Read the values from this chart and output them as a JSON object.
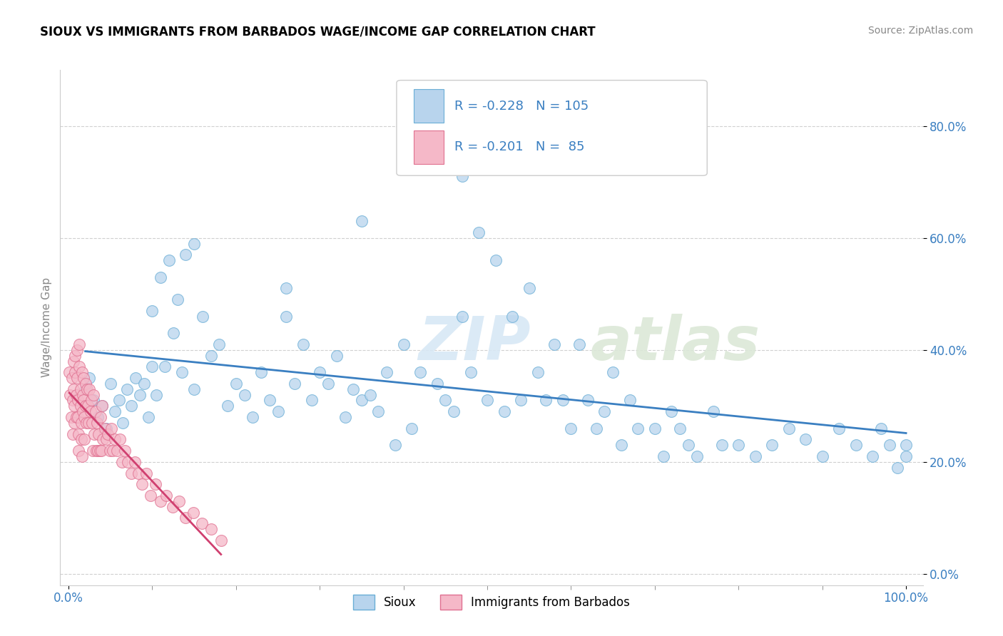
{
  "title": "SIOUX VS IMMIGRANTS FROM BARBADOS WAGE/INCOME GAP CORRELATION CHART",
  "source": "Source: ZipAtlas.com",
  "ylabel": "Wage/Income Gap",
  "legend_label1": "Sioux",
  "legend_label2": "Immigrants from Barbados",
  "R1": -0.228,
  "N1": 105,
  "R2": -0.201,
  "N2": 85,
  "watermark_zip": "ZIP",
  "watermark_atlas": "atlas",
  "color_sioux_fill": "#b8d4ed",
  "color_sioux_edge": "#6aaed6",
  "color_barbados_fill": "#f5b8c8",
  "color_barbados_edge": "#e07090",
  "color_line_sioux": "#3a7fc1",
  "color_line_barbados": "#d04070",
  "ytick_vals": [
    0.0,
    0.2,
    0.4,
    0.6,
    0.8
  ],
  "ytick_labels": [
    "0.0%",
    "20.0%",
    "40.0%",
    "60.0%",
    "80.0%"
  ],
  "sioux_x": [
    0.02,
    0.025,
    0.03,
    0.035,
    0.04,
    0.045,
    0.05,
    0.055,
    0.06,
    0.065,
    0.07,
    0.075,
    0.08,
    0.085,
    0.09,
    0.095,
    0.1,
    0.105,
    0.11,
    0.115,
    0.12,
    0.125,
    0.13,
    0.135,
    0.14,
    0.15,
    0.16,
    0.17,
    0.18,
    0.19,
    0.2,
    0.21,
    0.22,
    0.23,
    0.24,
    0.25,
    0.26,
    0.27,
    0.28,
    0.29,
    0.3,
    0.31,
    0.32,
    0.33,
    0.34,
    0.35,
    0.36,
    0.37,
    0.38,
    0.39,
    0.4,
    0.41,
    0.42,
    0.44,
    0.45,
    0.46,
    0.47,
    0.48,
    0.49,
    0.5,
    0.51,
    0.52,
    0.53,
    0.54,
    0.55,
    0.56,
    0.57,
    0.58,
    0.59,
    0.6,
    0.61,
    0.62,
    0.63,
    0.64,
    0.65,
    0.66,
    0.67,
    0.68,
    0.7,
    0.71,
    0.72,
    0.73,
    0.74,
    0.75,
    0.77,
    0.78,
    0.8,
    0.82,
    0.84,
    0.86,
    0.88,
    0.9,
    0.92,
    0.94,
    0.96,
    0.97,
    0.98,
    0.99,
    1.0,
    1.0,
    0.47,
    0.35,
    0.26,
    0.15,
    0.1
  ],
  "sioux_y": [
    0.33,
    0.35,
    0.31,
    0.28,
    0.3,
    0.26,
    0.34,
    0.29,
    0.31,
    0.27,
    0.33,
    0.3,
    0.35,
    0.32,
    0.34,
    0.28,
    0.37,
    0.32,
    0.53,
    0.37,
    0.56,
    0.43,
    0.49,
    0.36,
    0.57,
    0.33,
    0.46,
    0.39,
    0.41,
    0.3,
    0.34,
    0.32,
    0.28,
    0.36,
    0.31,
    0.29,
    0.46,
    0.34,
    0.41,
    0.31,
    0.36,
    0.34,
    0.39,
    0.28,
    0.33,
    0.31,
    0.32,
    0.29,
    0.36,
    0.23,
    0.41,
    0.26,
    0.36,
    0.34,
    0.31,
    0.29,
    0.46,
    0.36,
    0.61,
    0.31,
    0.56,
    0.29,
    0.46,
    0.31,
    0.51,
    0.36,
    0.31,
    0.41,
    0.31,
    0.26,
    0.41,
    0.31,
    0.26,
    0.29,
    0.36,
    0.23,
    0.31,
    0.26,
    0.26,
    0.21,
    0.29,
    0.26,
    0.23,
    0.21,
    0.29,
    0.23,
    0.23,
    0.21,
    0.23,
    0.26,
    0.24,
    0.21,
    0.26,
    0.23,
    0.21,
    0.26,
    0.23,
    0.19,
    0.21,
    0.23,
    0.71,
    0.63,
    0.51,
    0.59,
    0.47
  ],
  "barbados_x": [
    0.001,
    0.002,
    0.003,
    0.004,
    0.005,
    0.005,
    0.006,
    0.006,
    0.007,
    0.007,
    0.008,
    0.008,
    0.009,
    0.009,
    0.01,
    0.01,
    0.011,
    0.011,
    0.012,
    0.012,
    0.013,
    0.013,
    0.014,
    0.014,
    0.015,
    0.015,
    0.016,
    0.016,
    0.017,
    0.017,
    0.018,
    0.018,
    0.019,
    0.019,
    0.02,
    0.02,
    0.021,
    0.022,
    0.023,
    0.024,
    0.025,
    0.026,
    0.027,
    0.028,
    0.029,
    0.03,
    0.031,
    0.032,
    0.033,
    0.034,
    0.035,
    0.036,
    0.037,
    0.038,
    0.039,
    0.04,
    0.041,
    0.043,
    0.045,
    0.047,
    0.049,
    0.051,
    0.053,
    0.055,
    0.058,
    0.061,
    0.064,
    0.067,
    0.071,
    0.075,
    0.079,
    0.083,
    0.088,
    0.093,
    0.098,
    0.104,
    0.11,
    0.117,
    0.124,
    0.132,
    0.14,
    0.149,
    0.159,
    0.17,
    0.182
  ],
  "barbados_y": [
    0.36,
    0.32,
    0.28,
    0.35,
    0.31,
    0.25,
    0.38,
    0.33,
    0.3,
    0.27,
    0.39,
    0.36,
    0.32,
    0.28,
    0.4,
    0.35,
    0.31,
    0.28,
    0.25,
    0.22,
    0.41,
    0.37,
    0.33,
    0.3,
    0.27,
    0.24,
    0.21,
    0.36,
    0.32,
    0.29,
    0.35,
    0.31,
    0.28,
    0.24,
    0.34,
    0.3,
    0.27,
    0.33,
    0.3,
    0.27,
    0.33,
    0.29,
    0.31,
    0.27,
    0.22,
    0.32,
    0.25,
    0.29,
    0.22,
    0.27,
    0.22,
    0.25,
    0.22,
    0.28,
    0.22,
    0.3,
    0.24,
    0.26,
    0.24,
    0.25,
    0.22,
    0.26,
    0.22,
    0.24,
    0.22,
    0.24,
    0.2,
    0.22,
    0.2,
    0.18,
    0.2,
    0.18,
    0.16,
    0.18,
    0.14,
    0.16,
    0.13,
    0.14,
    0.12,
    0.13,
    0.1,
    0.11,
    0.09,
    0.08,
    0.06
  ]
}
